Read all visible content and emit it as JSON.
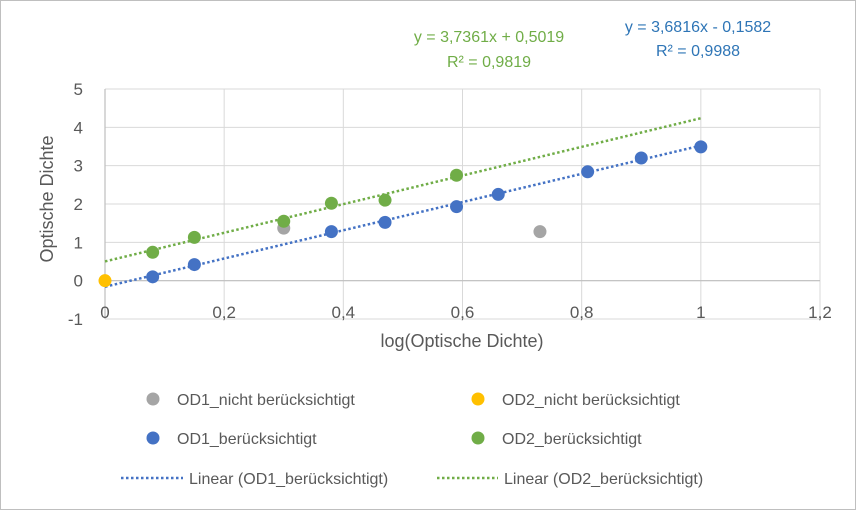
{
  "chart_data": {
    "type": "scatter",
    "xlabel": "log(Optische Dichte)",
    "ylabel": "Optische Dichte",
    "xlim": [
      0,
      1.2
    ],
    "ylim": [
      -1,
      5
    ],
    "x_ticks": [
      "0",
      "0,2",
      "0,4",
      "0,6",
      "0,8",
      "1",
      "1,2"
    ],
    "y_ticks": [
      "-1",
      "0",
      "1",
      "2",
      "3",
      "4",
      "5"
    ],
    "grid": true,
    "legend_position": "bottom",
    "series": [
      {
        "name": "OD1_nicht berücksichtigt",
        "color": "#a5a5a5",
        "points": [
          [
            0.3,
            1.37
          ],
          [
            0.73,
            1.28
          ]
        ]
      },
      {
        "name": "OD2_nicht berücksichtigt",
        "color": "#ffc000",
        "points": [
          [
            0.0,
            0.0
          ]
        ]
      },
      {
        "name": "OD1_berücksichtigt",
        "color": "#4472c4",
        "points": [
          [
            0.08,
            0.1
          ],
          [
            0.15,
            0.42
          ],
          [
            0.38,
            1.28
          ],
          [
            0.47,
            1.52
          ],
          [
            0.59,
            1.93
          ],
          [
            0.66,
            2.25
          ],
          [
            0.81,
            2.84
          ],
          [
            0.9,
            3.2
          ],
          [
            1.0,
            3.49
          ]
        ]
      },
      {
        "name": "OD2_berücksichtigt",
        "color": "#70ad47",
        "points": [
          [
            0.08,
            0.74
          ],
          [
            0.15,
            1.13
          ],
          [
            0.3,
            1.55
          ],
          [
            0.38,
            2.02
          ],
          [
            0.47,
            2.1
          ],
          [
            0.59,
            2.75
          ]
        ]
      }
    ],
    "trendlines": [
      {
        "name": "Linear (OD1_berücksichtigt)",
        "color": "#4472c4",
        "slope": 3.6816,
        "intercept": -0.1582,
        "x_range": [
          0,
          1
        ],
        "equation": "y = 3,6816x - 0,1582",
        "r2": "R² = 0,9988"
      },
      {
        "name": "Linear (OD2_berücksichtigt)",
        "color": "#70ad47",
        "slope": 3.7361,
        "intercept": 0.5019,
        "x_range": [
          0,
          1
        ],
        "equation": "y = 3,7361x + 0,5019",
        "r2": "R² = 0,9819"
      }
    ]
  }
}
